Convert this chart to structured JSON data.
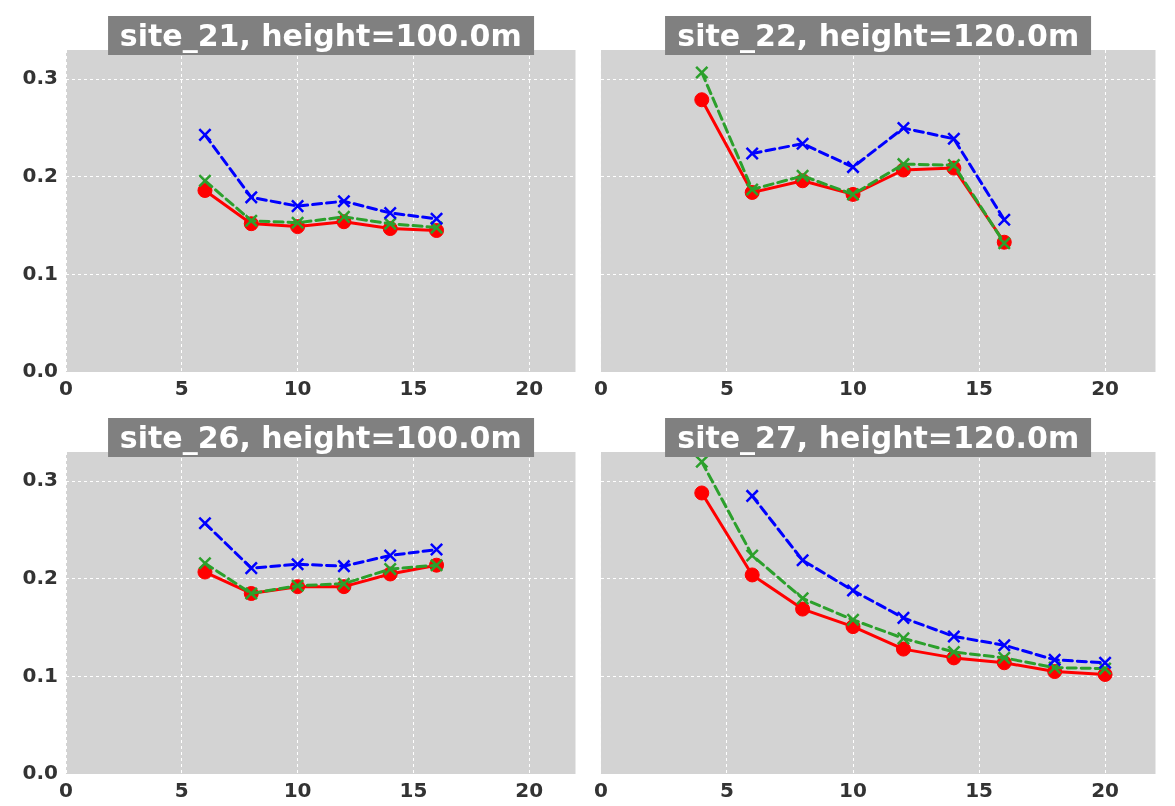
{
  "chart_data": [
    {
      "type": "line",
      "title": "site_21, height=100.0m",
      "x": [
        6,
        8,
        10,
        12,
        14,
        16
      ],
      "xlim": [
        0,
        22
      ],
      "xticks": [
        0,
        5,
        10,
        15,
        20
      ],
      "ylim": [
        0,
        0.33
      ],
      "yticks": [
        {
          "value": 0,
          "label": "0.0"
        },
        0.1,
        0.2,
        0.3
      ],
      "grid": true,
      "series": [
        {
          "color": "#0000ff",
          "marker": "cross",
          "line_style": "dashed",
          "values": [
            0.243,
            0.179,
            0.17,
            0.175,
            0.163,
            0.157
          ]
        },
        {
          "color": "#2ca02c",
          "marker": "cross",
          "line_style": "dashed",
          "values": [
            0.196,
            0.155,
            0.153,
            0.159,
            0.152,
            0.148
          ]
        },
        {
          "color": "#ff0000",
          "marker": "circle",
          "line_style": "solid",
          "values": [
            0.186,
            0.152,
            0.149,
            0.154,
            0.147,
            0.145
          ]
        }
      ]
    },
    {
      "type": "line",
      "title": "site_22, height=120.0m",
      "x": [
        4,
        6,
        8,
        10,
        12,
        14,
        16
      ],
      "xlim": [
        0,
        22
      ],
      "xticks": [
        0,
        5,
        10,
        15,
        20
      ],
      "ylim": [
        0,
        0.33
      ],
      "yticks": [
        0,
        0.1,
        0.2,
        0.3
      ],
      "grid": true,
      "tick_labels": "x",
      "series": [
        {
          "color": "#0000ff",
          "marker": "cross",
          "line_style": "dashed",
          "values": [
            null,
            0.224,
            0.234,
            0.21,
            0.25,
            0.239,
            0.156
          ]
        },
        {
          "color": "#2ca02c",
          "marker": "cross",
          "line_style": "dashed",
          "values": [
            0.307,
            0.187,
            0.201,
            0.182,
            0.213,
            0.212,
            0.132
          ]
        },
        {
          "color": "#ff0000",
          "marker": "circle",
          "line_style": "solid",
          "values": [
            0.279,
            0.184,
            0.196,
            0.182,
            0.207,
            0.209,
            0.133
          ]
        }
      ]
    },
    {
      "type": "line",
      "title": "site_26, height=100.0m",
      "x": [
        6,
        8,
        10,
        12,
        14,
        16
      ],
      "xlim": [
        0,
        22
      ],
      "xticks": [
        0,
        5,
        10,
        15,
        20
      ],
      "ylim": [
        0,
        0.33
      ],
      "yticks": [
        {
          "value": 0,
          "label": "0.0"
        },
        0.1,
        0.2,
        0.3
      ],
      "grid": true,
      "series": [
        {
          "color": "#0000ff",
          "marker": "cross",
          "line_style": "dashed",
          "values": [
            0.257,
            0.211,
            0.215,
            0.213,
            0.224,
            0.23
          ]
        },
        {
          "color": "#2ca02c",
          "marker": "cross",
          "line_style": "dashed",
          "values": [
            0.216,
            0.185,
            0.193,
            0.195,
            0.21,
            0.214
          ]
        },
        {
          "color": "#ff0000",
          "marker": "circle",
          "line_style": "solid",
          "values": [
            0.207,
            0.185,
            0.192,
            0.192,
            0.205,
            0.214
          ]
        }
      ]
    },
    {
      "type": "line",
      "title": "site_27, height=120.0m",
      "x": [
        4,
        6,
        8,
        10,
        12,
        14,
        16,
        18,
        20
      ],
      "xlim": [
        0,
        22
      ],
      "xticks": [
        0,
        5,
        10,
        15,
        20
      ],
      "ylim": [
        0,
        0.33
      ],
      "yticks": [
        0,
        0.1,
        0.2,
        0.3
      ],
      "grid": true,
      "tick_labels": "x",
      "series": [
        {
          "color": "#0000ff",
          "marker": "cross",
          "line_style": "dashed",
          "values": [
            null,
            0.285,
            0.219,
            0.188,
            0.16,
            0.141,
            0.132,
            0.117,
            0.114
          ]
        },
        {
          "color": "#2ca02c",
          "marker": "cross",
          "line_style": "dashed",
          "values": [
            0.32,
            0.224,
            0.18,
            0.158,
            0.139,
            0.125,
            0.119,
            0.109,
            0.108
          ]
        },
        {
          "color": "#ff0000",
          "marker": "circle",
          "line_style": "solid",
          "values": [
            0.288,
            0.204,
            0.169,
            0.151,
            0.128,
            0.119,
            0.114,
            0.105,
            0.102
          ]
        }
      ]
    }
  ]
}
